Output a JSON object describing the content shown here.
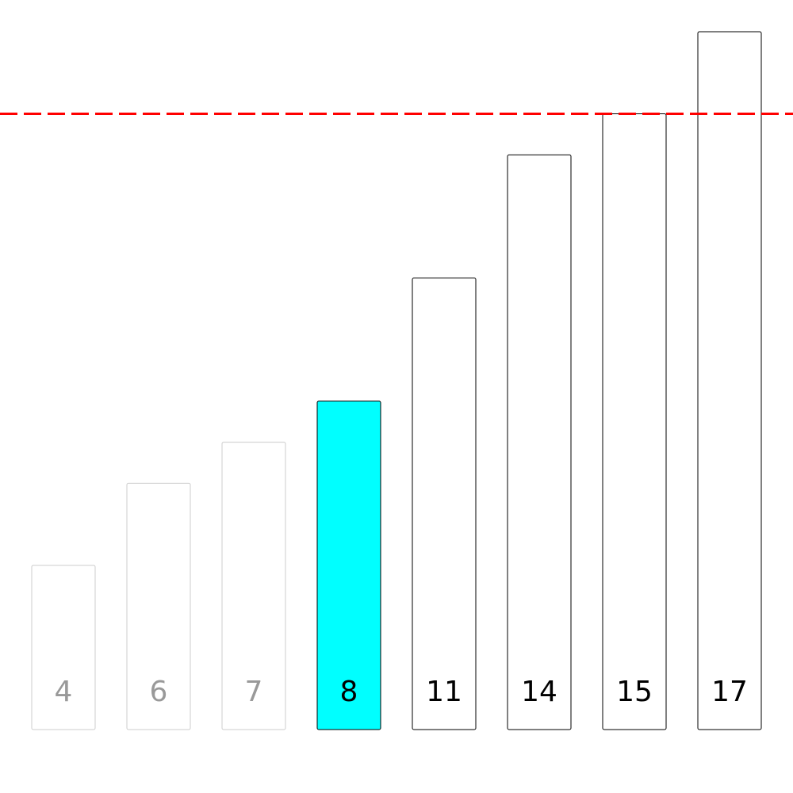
{
  "chart_data": {
    "type": "bar",
    "categories": [
      "4",
      "6",
      "7",
      "8",
      "11",
      "14",
      "15",
      "17"
    ],
    "values": [
      4,
      6,
      7,
      8,
      11,
      14,
      15,
      17
    ],
    "bar_states": [
      "done",
      "done",
      "done",
      "active",
      "pending",
      "pending",
      "pending",
      "pending"
    ],
    "threshold": 15,
    "title": "",
    "xlabel": "",
    "ylabel": "",
    "ylim": [
      0,
      17
    ],
    "grid": false,
    "legend": "none"
  },
  "colors": {
    "background": "#ffffff",
    "active_fill": "#00ffff",
    "bar_fill": "#ffffff",
    "active_stroke": "#000000",
    "pending_stroke": "#000000",
    "done_stroke": "#cccccc",
    "done_text": "#999999",
    "pending_text": "#000000",
    "threshold_line": "#ff0000"
  }
}
